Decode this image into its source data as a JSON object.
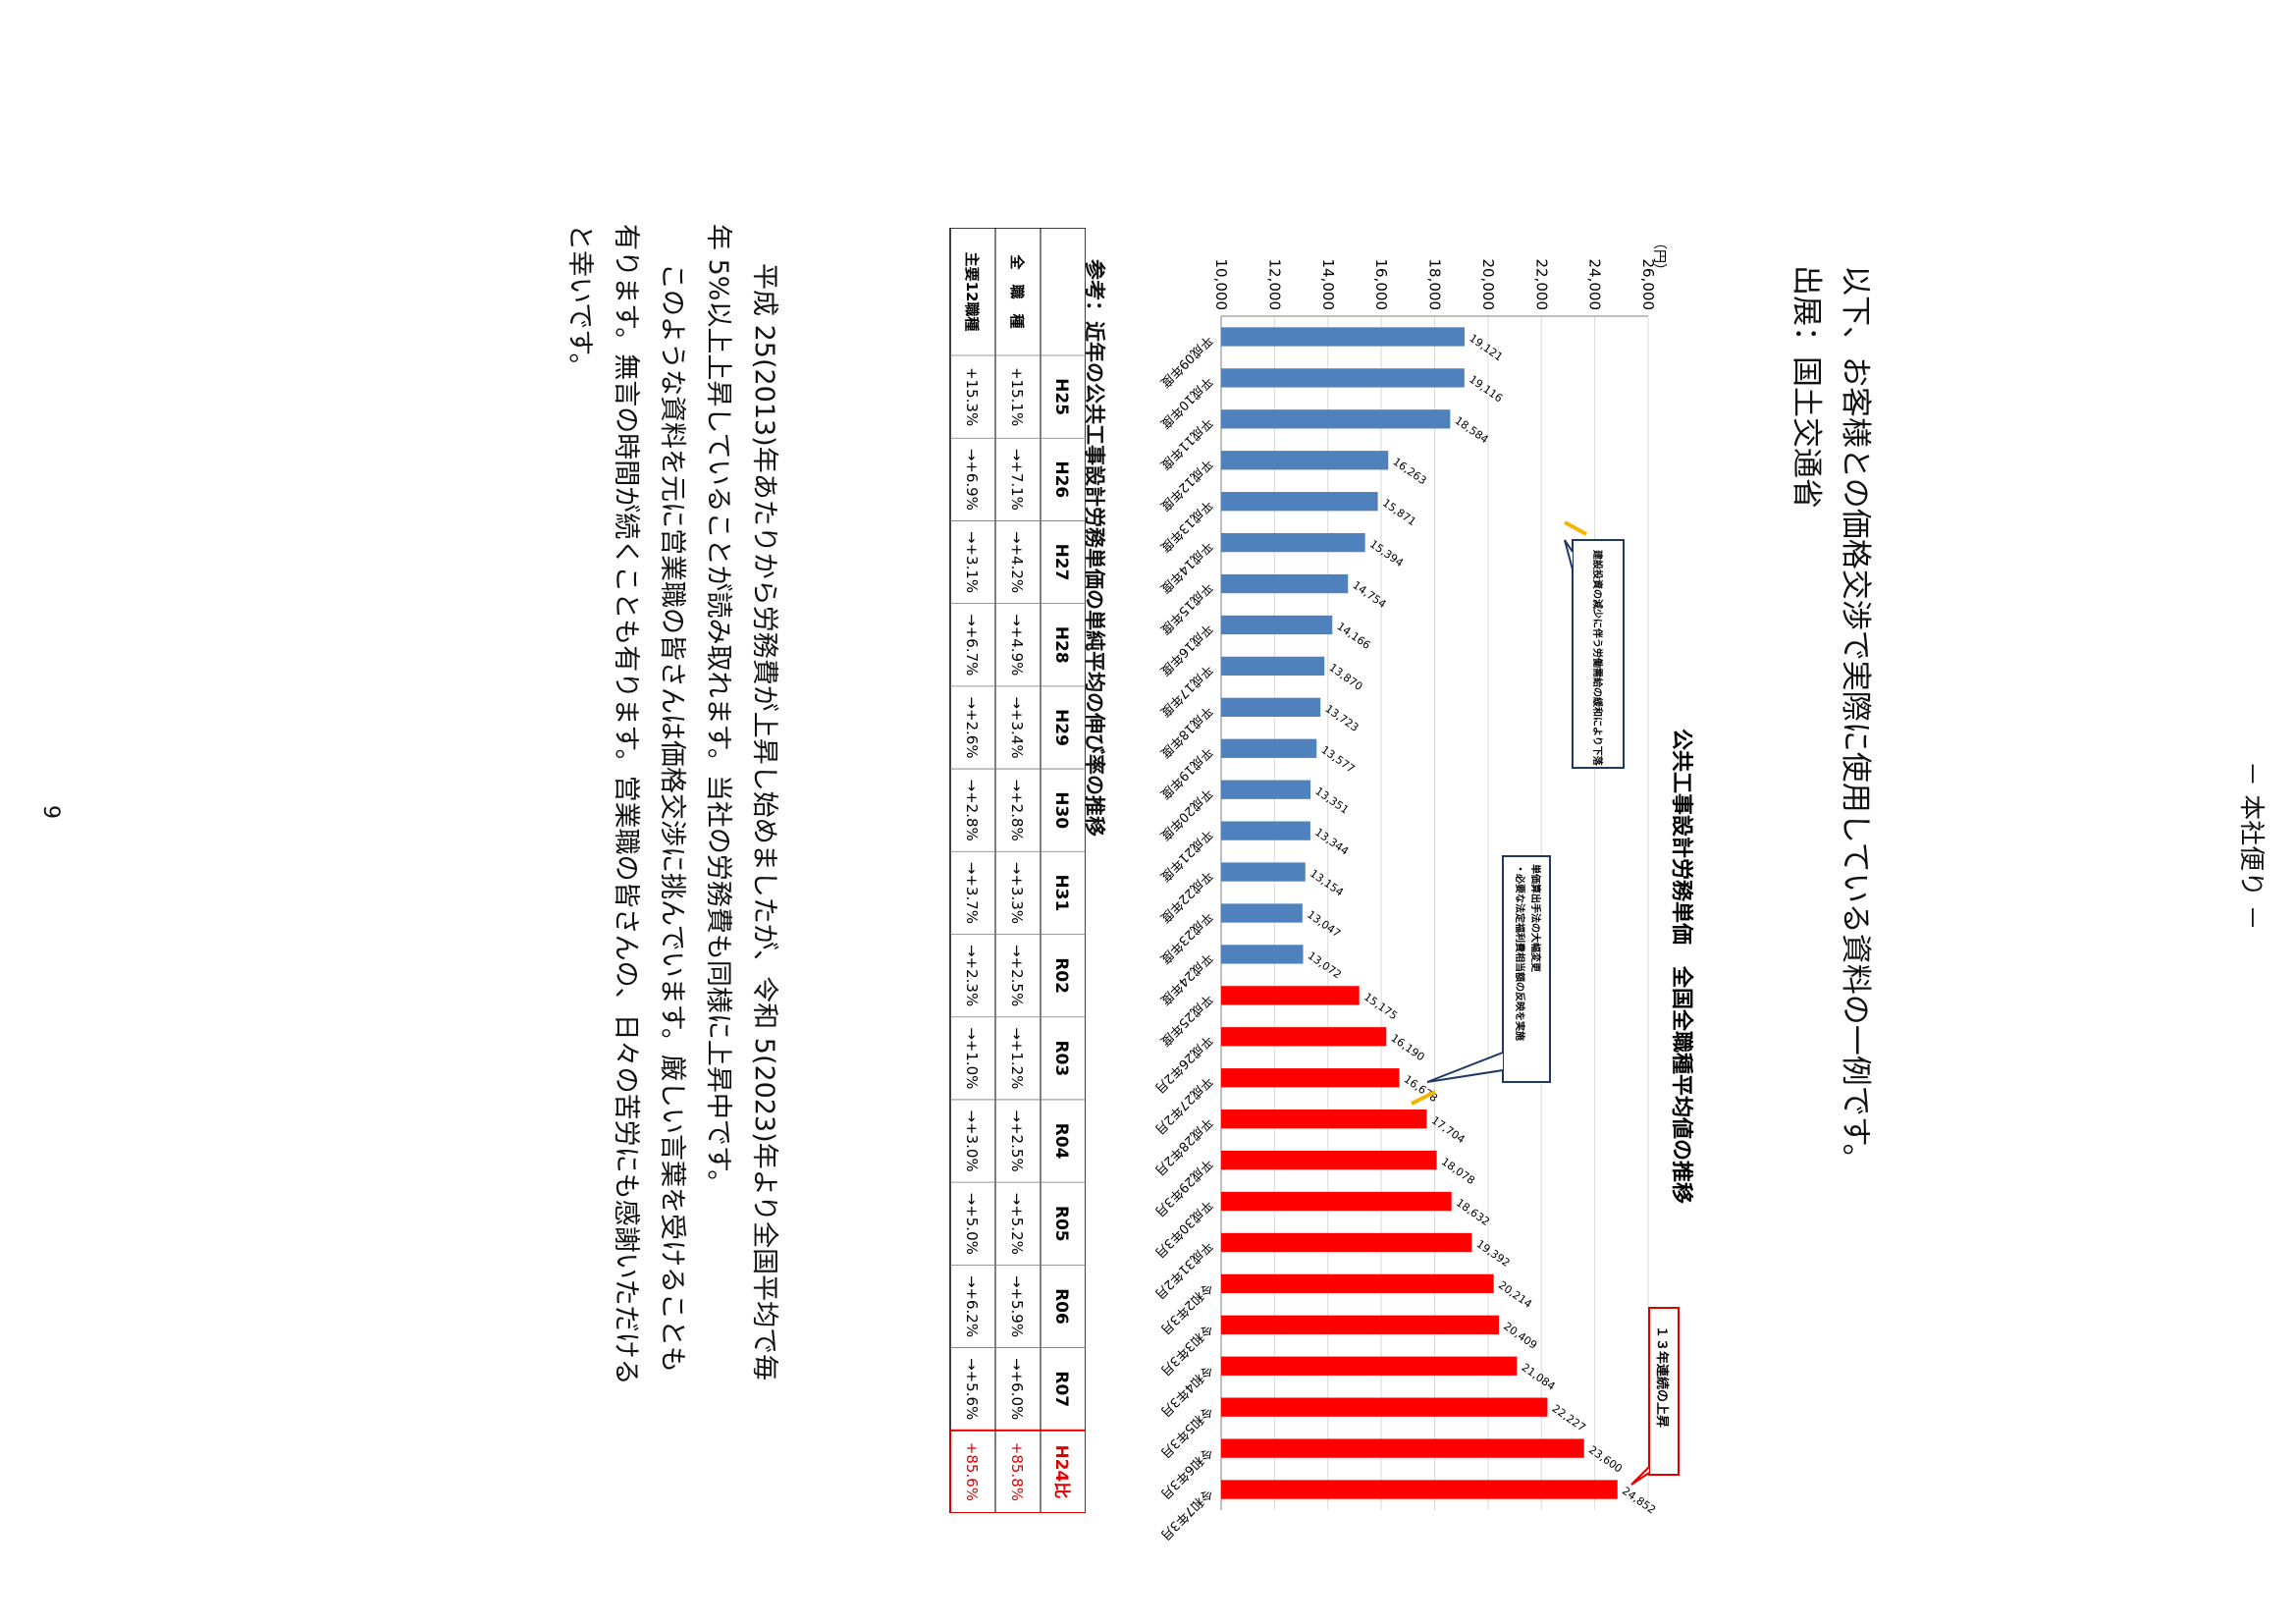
{
  "header": {
    "title": "－ 本社便り －"
  },
  "intro": {
    "line1": "以下、お客様との価格交渉で実際に使用している資料の一例です。",
    "source": "出展：国土交通省"
  },
  "chart_data": {
    "type": "bar",
    "title": "公共工事設計労務単価　全国全職種平均値の推移",
    "ylabel": "（円）",
    "ylim": [
      10000,
      26000
    ],
    "yticks": [
      "10,000",
      "12,000",
      "14,000",
      "16,000",
      "18,000",
      "20,000",
      "22,000",
      "24,000",
      "26,000"
    ],
    "categories": [
      "平成09年度",
      "平成10年度",
      "平成11年度",
      "平成12年度",
      "平成13年度",
      "平成14年度",
      "平成15年度",
      "平成16年度",
      "平成17年度",
      "平成18年度",
      "平成19年度",
      "平成20年度",
      "平成21年度",
      "平成22年度",
      "平成23年度",
      "平成24年度",
      "平成25年度",
      "平成26年2月",
      "平成27年2月",
      "平成28年2月",
      "平成29年3月",
      "平成30年3月",
      "平成31年2月",
      "令和2年3月",
      "令和3年3月",
      "令和4年3月",
      "令和5年3月",
      "令和6年3月",
      "令和7年3月"
    ],
    "values": [
      19121,
      19116,
      18584,
      16263,
      15871,
      15394,
      14754,
      14166,
      13870,
      13723,
      13577,
      13351,
      13344,
      13154,
      13047,
      13072,
      15175,
      16190,
      16678,
      17704,
      18078,
      18632,
      19392,
      20214,
      20409,
      21084,
      22227,
      23600,
      24852
    ],
    "value_labels": [
      "19,121",
      "19,116",
      "18,584",
      "16,263",
      "15,871",
      "15,394",
      "14,754",
      "14,166",
      "13,870",
      "13,723",
      "13,577",
      "13,351",
      "13,344",
      "13,154",
      "13,047",
      "13,072",
      "15,175",
      "16,190",
      "16,678",
      "17,704",
      "18,078",
      "18,632",
      "19,392",
      "20,214",
      "20,409",
      "21,084",
      "22,227",
      "23,600",
      "24,852"
    ],
    "colors": {
      "old": "#4f81bd",
      "new": "#ff0000"
    },
    "red_from_index": 16,
    "annotations": [
      "建設投資の減少に伴う労働需給の緩和により下落",
      "単価算出手法の大幅変更\n・必要な法定福利費相当額の反映を実施",
      "１３年連続の上昇"
    ],
    "grid": true
  },
  "table": {
    "caption": "参考：近年の公共工事設計労務単価の単純平均の伸び率の推移",
    "header": [
      "",
      "H25",
      "H26",
      "H27",
      "H28",
      "H29",
      "H30",
      "H31",
      "R02",
      "R03",
      "R04",
      "R05",
      "R06",
      "R07",
      "H24比"
    ],
    "rows": [
      [
        "全　職　種",
        "+15.1%",
        "→+7.1%",
        "→+4.2%",
        "→+4.9%",
        "→+3.4%",
        "→+2.8%",
        "→+3.3%",
        "→+2.5%",
        "→+1.2%",
        "→+2.5%",
        "→+5.2%",
        "→+5.9%",
        "→+6.0%",
        "+85.8%"
      ],
      [
        "主要12職種",
        "+15.3%",
        "→+6.9%",
        "→+3.1%",
        "→+6.7%",
        "→+2.6%",
        "→+2.8%",
        "→+3.7%",
        "→+2.3%",
        "→+1.0%",
        "→+3.0%",
        "→+5.0%",
        "→+6.2%",
        "→+5.6%",
        "+85.6%"
      ]
    ]
  },
  "body": {
    "line1": "平成 25(2013)年あたりから労務費が上昇し始めましたが、令和 5(2023)年より全国平均で毎",
    "line2": "年 5%以上上昇していることが読み取れます。当社の労務費も同様に上昇中です。",
    "line3": "このような資料を元に営業職の皆さんは価格交渉に挑んでいます。厳しい言葉を受けることも",
    "line4": "有ります。無言の時間が続くことも有ります。営業職の皆さんの、日々の苦労にも感謝いただける",
    "line5": "と幸いです。"
  },
  "footer": {
    "page_number": "9"
  }
}
